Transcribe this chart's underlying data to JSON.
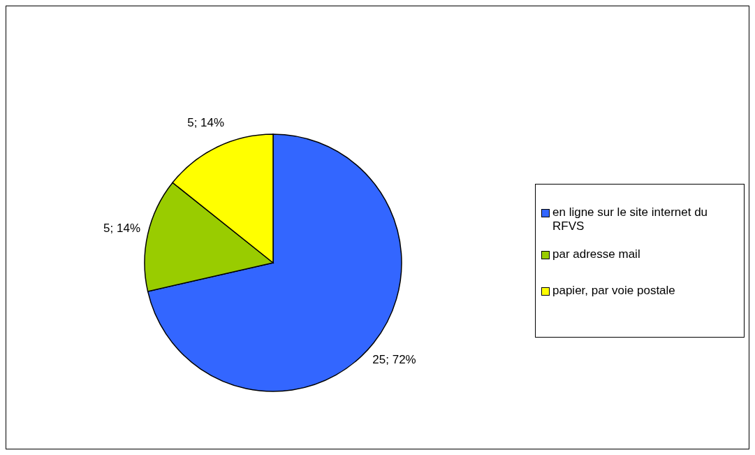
{
  "chart_data": {
    "type": "pie",
    "categories": [
      "en ligne sur le site internet du RFVS",
      "par adresse mail",
      "papier, par voie postale"
    ],
    "values": [
      25,
      5,
      5
    ],
    "colors": [
      "#3366ff",
      "#99cc00",
      "#ffff00"
    ],
    "value_labels": [
      "25; 72%",
      "5; 14%",
      "5; 14%"
    ],
    "legend": "right"
  }
}
